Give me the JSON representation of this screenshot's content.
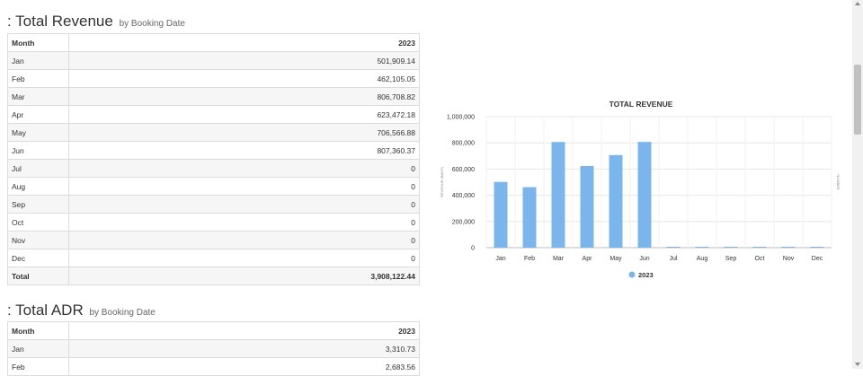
{
  "revenue_section": {
    "title": ": Total Revenue",
    "subtitle": "by Booking Date",
    "table": {
      "headers": [
        "Month",
        "2023"
      ],
      "rows": [
        [
          "Jan",
          "501,909.14"
        ],
        [
          "Feb",
          "462,105.05"
        ],
        [
          "Mar",
          "806,708.82"
        ],
        [
          "Apr",
          "623,472.18"
        ],
        [
          "May",
          "706,566.88"
        ],
        [
          "Jun",
          "807,360.37"
        ],
        [
          "Jul",
          "0"
        ],
        [
          "Aug",
          "0"
        ],
        [
          "Sep",
          "0"
        ],
        [
          "Oct",
          "0"
        ],
        [
          "Nov",
          "0"
        ],
        [
          "Dec",
          "0"
        ]
      ],
      "total": [
        "Total",
        "3,908,122.44"
      ]
    }
  },
  "adr_section": {
    "title": ": Total ADR",
    "subtitle": "by Booking Date",
    "table": {
      "headers": [
        "Month",
        "2023"
      ],
      "rows": [
        [
          "Jan",
          "3,310.73"
        ],
        [
          "Feb",
          "2,683.56"
        ]
      ]
    }
  },
  "chart_data": {
    "type": "bar",
    "title": "TOTAL REVENUE",
    "ylabel": "REVENUE (BAHT)",
    "ylabel_right": "NUMBER",
    "categories": [
      "Jan",
      "Feb",
      "Mar",
      "Apr",
      "May",
      "Jun",
      "Jul",
      "Aug",
      "Sep",
      "Oct",
      "Nov",
      "Dec"
    ],
    "series": [
      {
        "name": "2023",
        "values": [
          501909.14,
          462105.05,
          806708.82,
          623472.18,
          706566.88,
          807360.37,
          0,
          0,
          0,
          0,
          0,
          0
        ]
      }
    ],
    "yticks": [
      "0",
      "200,000",
      "400,000",
      "600,000",
      "800,000",
      "1,000,000"
    ],
    "ytick_values": [
      0,
      200000,
      400000,
      600000,
      800000,
      1000000
    ],
    "ylim": [
      0,
      1000000
    ],
    "grid": true,
    "legend": "bottom",
    "bar_color": "#7cb5ec"
  }
}
